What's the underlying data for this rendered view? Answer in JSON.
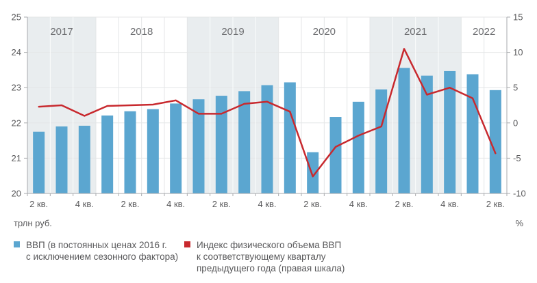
{
  "units": {
    "left": "трлн руб.",
    "right": "%"
  },
  "legend": [
    {
      "id": "gdp",
      "color": "#5ba6d0",
      "label": "ВВП (в постоянных ценах 2016 г.\nс исключением сезонного фактора)"
    },
    {
      "id": "index",
      "color": "#c8292e",
      "label": "Индекс физического объема ВВП\nк соответствующему кварталу\nпредыдущего года (правая шкала)"
    }
  ],
  "chart_data": {
    "type": "bar",
    "title": "",
    "xlabel": "",
    "ylabel_left": "трлн руб.",
    "ylabel_right": "%",
    "left_axis": {
      "min": 20,
      "max": 25,
      "ticks": [
        20,
        21,
        22,
        23,
        24,
        25
      ]
    },
    "right_axis": {
      "min": -10,
      "max": 15,
      "ticks": [
        -10,
        -5,
        0,
        5,
        10,
        15
      ]
    },
    "grid": true,
    "legend_position": "bottom",
    "years": [
      {
        "label": "2017",
        "quarters": 3,
        "shaded": true
      },
      {
        "label": "2018",
        "quarters": 4,
        "shaded": false
      },
      {
        "label": "2019",
        "quarters": 4,
        "shaded": true
      },
      {
        "label": "2020",
        "quarters": 4,
        "shaded": false
      },
      {
        "label": "2021",
        "quarters": 4,
        "shaded": true
      },
      {
        "label": "2022",
        "quarters": 2,
        "shaded": false
      }
    ],
    "categories": [
      "2 кв. 2017",
      "3 кв. 2017",
      "4 кв. 2017",
      "1 кв. 2018",
      "2 кв. 2018",
      "3 кв. 2018",
      "4 кв. 2018",
      "1 кв. 2019",
      "2 кв. 2019",
      "3 кв. 2019",
      "4 кв. 2019",
      "1 кв. 2020",
      "2 кв. 2020",
      "3 кв. 2020",
      "4 кв. 2020",
      "1 кв. 2021",
      "2 кв. 2021",
      "3 кв. 2021",
      "4 кв. 2021",
      "1 кв. 2022",
      "2 кв. 2022"
    ],
    "x_ticks": [
      {
        "index": 0,
        "label": "2 кв."
      },
      {
        "index": 2,
        "label": "4 кв."
      },
      {
        "index": 4,
        "label": "2 кв."
      },
      {
        "index": 6,
        "label": "4 кв."
      },
      {
        "index": 8,
        "label": "2 кв."
      },
      {
        "index": 10,
        "label": "4 кв."
      },
      {
        "index": 12,
        "label": "2 кв."
      },
      {
        "index": 14,
        "label": "4 кв."
      },
      {
        "index": 16,
        "label": "2 кв."
      },
      {
        "index": 18,
        "label": "4 кв."
      },
      {
        "index": 20,
        "label": "2 кв."
      }
    ],
    "series": [
      {
        "name": "ВВП (в постоянных ценах 2016 г. с исключением сезонного фактора)",
        "type": "bar",
        "axis": "left",
        "color": "#5ba6d0",
        "values": [
          21.75,
          21.9,
          21.92,
          22.21,
          22.33,
          22.39,
          22.55,
          22.67,
          22.77,
          22.9,
          23.07,
          23.15,
          21.17,
          22.17,
          22.6,
          22.95,
          23.56,
          23.34,
          23.47,
          23.38,
          22.93
        ]
      },
      {
        "name": "Индекс физического объема ВВП к соответствующему кварталу предыдущего года (правая шкала)",
        "type": "line",
        "axis": "right",
        "color": "#c8292e",
        "values": [
          2.3,
          2.5,
          1.0,
          2.4,
          2.5,
          2.6,
          3.2,
          1.3,
          1.3,
          2.7,
          3.0,
          1.6,
          -7.6,
          -3.4,
          -1.8,
          -0.5,
          10.5,
          4.0,
          5.0,
          3.5,
          -4.3
        ]
      }
    ],
    "style": {
      "band_color": "#e9edef",
      "grid_color": "#e4e6e7",
      "band_grid_color": "rgba(255,255,255,0.85)",
      "axis_color": "#a7a9ac",
      "tick_text_color": "#58585a",
      "year_text_color": "#6d6e71"
    }
  }
}
